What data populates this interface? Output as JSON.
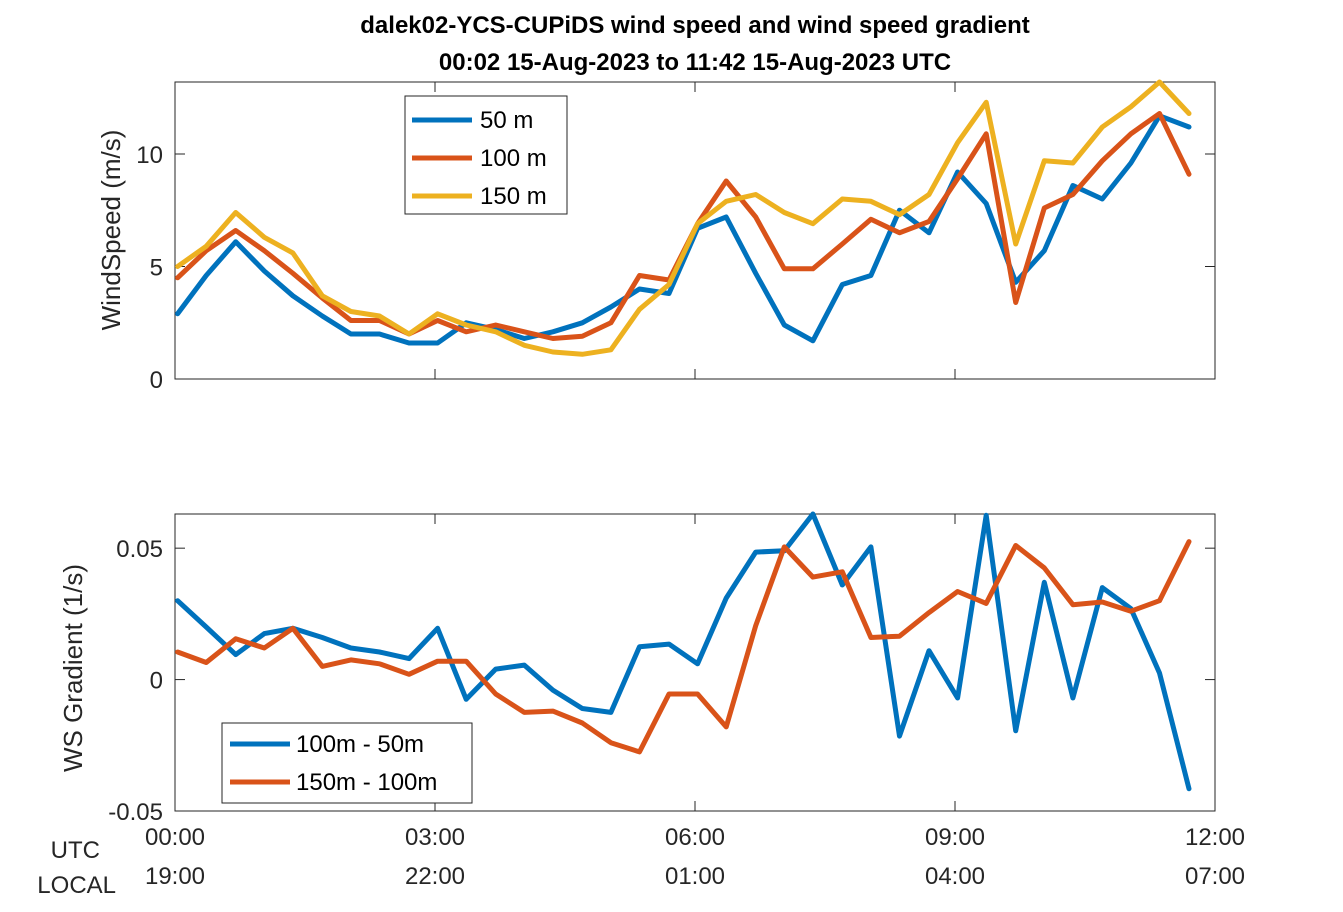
{
  "chart_data": [
    {
      "type": "line",
      "title": "dalek02-YCS-CUPiDS  wind speed and wind speed gradient",
      "subtitle": "00:02 15-Aug-2023 to 11:42 15-Aug-2023  UTC",
      "ylabel": "WindSpeed (m/s)",
      "ylim": [
        0,
        13.2
      ],
      "yticks": [
        "0",
        "5",
        "10"
      ],
      "ytick_values": [
        0,
        5,
        10
      ],
      "x_hours": [
        0.03,
        0.36,
        0.7,
        1.03,
        1.36,
        1.7,
        2.03,
        2.36,
        2.7,
        3.03,
        3.36,
        3.7,
        4.03,
        4.36,
        4.7,
        5.03,
        5.36,
        5.7,
        6.03,
        6.36,
        6.7,
        7.03,
        7.36,
        7.7,
        8.03,
        8.36,
        8.7,
        9.03,
        9.36,
        9.7,
        10.03,
        10.36,
        10.7,
        11.03,
        11.36,
        11.7
      ],
      "series": [
        {
          "name": "50 m",
          "color": "#0072BD",
          "values": [
            2.9,
            4.6,
            6.1,
            4.8,
            3.7,
            2.8,
            2.0,
            2.0,
            1.6,
            1.6,
            2.5,
            2.2,
            1.8,
            2.1,
            2.5,
            3.2,
            4.0,
            3.8,
            6.7,
            7.2,
            4.7,
            2.4,
            1.7,
            4.2,
            4.6,
            7.5,
            6.5,
            9.2,
            7.8,
            4.3,
            5.7,
            8.6,
            8.0,
            9.6,
            11.7,
            11.2
          ]
        },
        {
          "name": "100 m",
          "color": "#D95319",
          "values": [
            4.5,
            5.7,
            6.6,
            5.7,
            4.7,
            3.6,
            2.6,
            2.6,
            2.0,
            2.6,
            2.1,
            2.4,
            2.1,
            1.8,
            1.9,
            2.5,
            4.6,
            4.4,
            6.9,
            8.8,
            7.2,
            4.9,
            4.9,
            6.0,
            7.1,
            6.5,
            7.0,
            8.9,
            10.9,
            3.4,
            7.6,
            8.2,
            9.7,
            10.9,
            11.8,
            9.1
          ]
        },
        {
          "name": "150 m",
          "color": "#EDB120",
          "values": [
            5.0,
            5.9,
            7.4,
            6.3,
            5.6,
            3.7,
            3.0,
            2.8,
            2.0,
            2.9,
            2.4,
            2.1,
            1.5,
            1.2,
            1.1,
            1.3,
            3.1,
            4.2,
            6.9,
            7.9,
            8.2,
            7.4,
            6.9,
            8.0,
            7.9,
            7.3,
            8.2,
            10.5,
            12.3,
            6.0,
            9.7,
            9.6,
            11.2,
            12.1,
            13.2,
            11.8
          ]
        }
      ]
    },
    {
      "type": "line",
      "ylabel": "WS Gradient (1/s)",
      "ylim": [
        -0.05,
        0.063
      ],
      "yticks": [
        "-0.05",
        "0",
        "0.05"
      ],
      "ytick_values": [
        -0.05,
        0,
        0.05
      ],
      "x_hours": [
        0.03,
        0.36,
        0.7,
        1.03,
        1.36,
        1.7,
        2.03,
        2.36,
        2.7,
        3.03,
        3.36,
        3.7,
        4.03,
        4.36,
        4.7,
        5.03,
        5.36,
        5.7,
        6.03,
        6.36,
        6.7,
        7.03,
        7.36,
        7.7,
        8.03,
        8.36,
        8.7,
        9.03,
        9.36,
        9.7,
        10.03,
        10.36,
        10.7,
        11.03,
        11.36,
        11.7
      ],
      "series": [
        {
          "name": "100m - 50m",
          "color": "#0072BD",
          "values": [
            0.03,
            0.02,
            0.0095,
            0.0175,
            0.0195,
            0.016,
            0.012,
            0.0105,
            0.008,
            0.0195,
            -0.0075,
            0.004,
            0.0055,
            -0.004,
            -0.011,
            -0.0125,
            0.0125,
            0.0135,
            0.006,
            0.031,
            0.0485,
            0.049,
            0.063,
            0.036,
            0.0505,
            -0.0215,
            0.011,
            -0.007,
            0.0625,
            -0.0195,
            0.037,
            -0.007,
            0.035,
            0.027,
            0.0025,
            -0.0415
          ]
        },
        {
          "name": "150m - 100m",
          "color": "#D95319",
          "values": [
            0.0105,
            0.0065,
            0.0155,
            0.012,
            0.0195,
            0.005,
            0.0075,
            0.006,
            0.002,
            0.007,
            0.007,
            -0.0055,
            -0.0125,
            -0.012,
            -0.0165,
            -0.024,
            -0.0275,
            -0.0055,
            -0.0055,
            -0.018,
            0.0205,
            0.0505,
            0.039,
            0.041,
            0.016,
            0.0165,
            0.0255,
            0.0335,
            0.029,
            0.051,
            0.0425,
            0.0285,
            0.0295,
            0.026,
            0.03,
            0.0525
          ]
        }
      ]
    }
  ],
  "x_axis": {
    "utc_label": "UTC",
    "local_label": "LOCAL",
    "xlim_hours": [
      0,
      12
    ],
    "tick_hours": [
      0,
      3,
      6,
      9,
      12
    ],
    "utc_ticks": [
      "00:00",
      "03:00",
      "06:00",
      "09:00",
      "12:00"
    ],
    "local_ticks": [
      "19:00",
      "22:00",
      "01:00",
      "04:00",
      "07:00"
    ]
  }
}
